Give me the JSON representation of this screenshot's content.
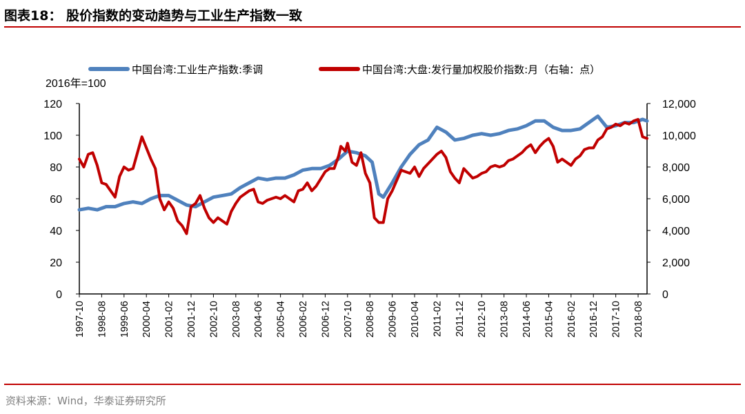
{
  "figure": {
    "title": "图表18： 股价指数的变动趋势与工业生产指数一致",
    "source": "资料来源：Wind，华泰证券研究所"
  },
  "colors": {
    "rule": "#c00000",
    "ip_series": "#4f81bd",
    "stock_series": "#c00000"
  },
  "chart_data": {
    "type": "line",
    "unit_label": "2016年=100",
    "legend_position": "top",
    "grid": false,
    "x_tick_labels": [
      "1997-10",
      "1998-08",
      "1999-06",
      "2000-04",
      "2001-02",
      "2001-12",
      "2002-10",
      "2003-08",
      "2004-06",
      "2005-04",
      "2006-02",
      "2006-12",
      "2007-10",
      "2008-08",
      "2009-06",
      "2010-04",
      "2011-02",
      "2011-12",
      "2012-10",
      "2013-08",
      "2014-06",
      "2015-04",
      "2016-02",
      "2016-12",
      "2017-10",
      "2018-08"
    ],
    "x_range": [
      "1997-10",
      "2018-12"
    ],
    "y_left": {
      "range": [
        0,
        120
      ],
      "ticks": [
        "0",
        "20",
        "40",
        "60",
        "80",
        "100",
        "120"
      ]
    },
    "y_right": {
      "range": [
        0,
        12000
      ],
      "ticks": [
        "0",
        "2,000",
        "4,000",
        "6,000",
        "8,000",
        "10,000",
        "12,000"
      ]
    },
    "series": [
      {
        "name": "中国台湾:工业生产指数:季调",
        "axis": "left",
        "points": [
          [
            "1997-10",
            53
          ],
          [
            "1998-02",
            54
          ],
          [
            "1998-06",
            53
          ],
          [
            "1998-10",
            55
          ],
          [
            "1999-02",
            55
          ],
          [
            "1999-06",
            57
          ],
          [
            "1999-10",
            58
          ],
          [
            "2000-02",
            57
          ],
          [
            "2000-06",
            60
          ],
          [
            "2000-10",
            62
          ],
          [
            "2001-02",
            62
          ],
          [
            "2001-06",
            59
          ],
          [
            "2001-10",
            56
          ],
          [
            "2002-02",
            55
          ],
          [
            "2002-06",
            58
          ],
          [
            "2002-10",
            61
          ],
          [
            "2003-02",
            62
          ],
          [
            "2003-06",
            63
          ],
          [
            "2003-10",
            67
          ],
          [
            "2004-02",
            70
          ],
          [
            "2004-06",
            73
          ],
          [
            "2004-10",
            72
          ],
          [
            "2005-02",
            73
          ],
          [
            "2005-06",
            73
          ],
          [
            "2005-10",
            75
          ],
          [
            "2006-02",
            78
          ],
          [
            "2006-06",
            79
          ],
          [
            "2006-10",
            79
          ],
          [
            "2007-02",
            81
          ],
          [
            "2007-06",
            85
          ],
          [
            "2007-10",
            90
          ],
          [
            "2008-02",
            89
          ],
          [
            "2008-06",
            87
          ],
          [
            "2008-09",
            83
          ],
          [
            "2008-12",
            63
          ],
          [
            "2009-02",
            61
          ],
          [
            "2009-06",
            70
          ],
          [
            "2009-10",
            80
          ],
          [
            "2010-02",
            88
          ],
          [
            "2010-06",
            94
          ],
          [
            "2010-10",
            97
          ],
          [
            "2011-02",
            105
          ],
          [
            "2011-06",
            102
          ],
          [
            "2011-10",
            97
          ],
          [
            "2012-02",
            98
          ],
          [
            "2012-06",
            100
          ],
          [
            "2012-10",
            101
          ],
          [
            "2013-02",
            100
          ],
          [
            "2013-06",
            101
          ],
          [
            "2013-10",
            103
          ],
          [
            "2014-02",
            104
          ],
          [
            "2014-06",
            106
          ],
          [
            "2014-10",
            109
          ],
          [
            "2015-02",
            109
          ],
          [
            "2015-06",
            105
          ],
          [
            "2015-10",
            103
          ],
          [
            "2016-02",
            103
          ],
          [
            "2016-06",
            104
          ],
          [
            "2016-10",
            108
          ],
          [
            "2017-02",
            112
          ],
          [
            "2017-06",
            105
          ],
          [
            "2017-10",
            106
          ],
          [
            "2018-02",
            108
          ],
          [
            "2018-06",
            108
          ],
          [
            "2018-10",
            110
          ],
          [
            "2018-12",
            109
          ]
        ]
      },
      {
        "name": "中国台湾:大盘:发行量加权股价指数:月（右轴：点）",
        "axis": "right",
        "points": [
          [
            "1997-10",
            8500
          ],
          [
            "1997-12",
            8000
          ],
          [
            "1998-02",
            8800
          ],
          [
            "1998-04",
            8900
          ],
          [
            "1998-06",
            8100
          ],
          [
            "1998-08",
            7000
          ],
          [
            "1998-10",
            6900
          ],
          [
            "1999-02",
            6100
          ],
          [
            "1999-04",
            7400
          ],
          [
            "1999-06",
            8000
          ],
          [
            "1999-08",
            7800
          ],
          [
            "1999-10",
            7900
          ],
          [
            "2000-02",
            9900
          ],
          [
            "2000-04",
            9200
          ],
          [
            "2000-06",
            8500
          ],
          [
            "2000-08",
            7900
          ],
          [
            "2000-10",
            6000
          ],
          [
            "2000-12",
            5300
          ],
          [
            "2001-02",
            5800
          ],
          [
            "2001-04",
            5400
          ],
          [
            "2001-06",
            4600
          ],
          [
            "2001-08",
            4300
          ],
          [
            "2001-10",
            3800
          ],
          [
            "2001-12",
            5500
          ],
          [
            "2002-02",
            5700
          ],
          [
            "2002-04",
            6200
          ],
          [
            "2002-06",
            5400
          ],
          [
            "2002-08",
            4800
          ],
          [
            "2002-10",
            4500
          ],
          [
            "2002-12",
            4800
          ],
          [
            "2003-02",
            4600
          ],
          [
            "2003-04",
            4400
          ],
          [
            "2003-06",
            5200
          ],
          [
            "2003-08",
            5700
          ],
          [
            "2003-10",
            6100
          ],
          [
            "2004-02",
            6500
          ],
          [
            "2004-04",
            6600
          ],
          [
            "2004-06",
            5800
          ],
          [
            "2004-08",
            5700
          ],
          [
            "2004-10",
            5900
          ],
          [
            "2005-02",
            6100
          ],
          [
            "2005-04",
            6000
          ],
          [
            "2005-06",
            6200
          ],
          [
            "2005-08",
            6000
          ],
          [
            "2005-10",
            5800
          ],
          [
            "2005-12",
            6500
          ],
          [
            "2006-02",
            6600
          ],
          [
            "2006-04",
            7000
          ],
          [
            "2006-06",
            6500
          ],
          [
            "2006-08",
            6800
          ],
          [
            "2006-12",
            7700
          ],
          [
            "2007-02",
            7900
          ],
          [
            "2007-04",
            7900
          ],
          [
            "2007-06",
            8700
          ],
          [
            "2007-07",
            9300
          ],
          [
            "2007-09",
            9000
          ],
          [
            "2007-10",
            9500
          ],
          [
            "2007-12",
            8300
          ],
          [
            "2008-02",
            8100
          ],
          [
            "2008-04",
            8900
          ],
          [
            "2008-06",
            7600
          ],
          [
            "2008-08",
            7000
          ],
          [
            "2008-10",
            4800
          ],
          [
            "2008-12",
            4500
          ],
          [
            "2009-02",
            4500
          ],
          [
            "2009-04",
            6000
          ],
          [
            "2009-06",
            6500
          ],
          [
            "2009-10",
            7800
          ],
          [
            "2010-02",
            7600
          ],
          [
            "2010-04",
            8000
          ],
          [
            "2010-06",
            7400
          ],
          [
            "2010-08",
            7900
          ],
          [
            "2010-10",
            8200
          ],
          [
            "2011-02",
            8800
          ],
          [
            "2011-04",
            9000
          ],
          [
            "2011-06",
            8600
          ],
          [
            "2011-08",
            7700
          ],
          [
            "2011-10",
            7300
          ],
          [
            "2011-12",
            7000
          ],
          [
            "2012-02",
            7900
          ],
          [
            "2012-04",
            7600
          ],
          [
            "2012-06",
            7300
          ],
          [
            "2012-08",
            7400
          ],
          [
            "2012-10",
            7600
          ],
          [
            "2012-12",
            7700
          ],
          [
            "2013-02",
            8000
          ],
          [
            "2013-04",
            8100
          ],
          [
            "2013-06",
            8000
          ],
          [
            "2013-08",
            8100
          ],
          [
            "2013-10",
            8400
          ],
          [
            "2013-12",
            8500
          ],
          [
            "2014-02",
            8700
          ],
          [
            "2014-04",
            8900
          ],
          [
            "2014-06",
            9200
          ],
          [
            "2014-08",
            9400
          ],
          [
            "2014-10",
            8900
          ],
          [
            "2014-12",
            9300
          ],
          [
            "2015-02",
            9600
          ],
          [
            "2015-04",
            9800
          ],
          [
            "2015-06",
            9300
          ],
          [
            "2015-08",
            8300
          ],
          [
            "2015-10",
            8500
          ],
          [
            "2015-12",
            8300
          ],
          [
            "2016-02",
            8100
          ],
          [
            "2016-04",
            8500
          ],
          [
            "2016-06",
            8700
          ],
          [
            "2016-08",
            9100
          ],
          [
            "2016-10",
            9200
          ],
          [
            "2016-12",
            9200
          ],
          [
            "2017-02",
            9700
          ],
          [
            "2017-04",
            9900
          ],
          [
            "2017-06",
            10400
          ],
          [
            "2017-08",
            10500
          ],
          [
            "2017-10",
            10700
          ],
          [
            "2017-12",
            10600
          ],
          [
            "2018-02",
            10800
          ],
          [
            "2018-04",
            10700
          ],
          [
            "2018-06",
            10900
          ],
          [
            "2018-08",
            11000
          ],
          [
            "2018-10",
            9900
          ],
          [
            "2018-12",
            9800
          ]
        ]
      }
    ]
  }
}
